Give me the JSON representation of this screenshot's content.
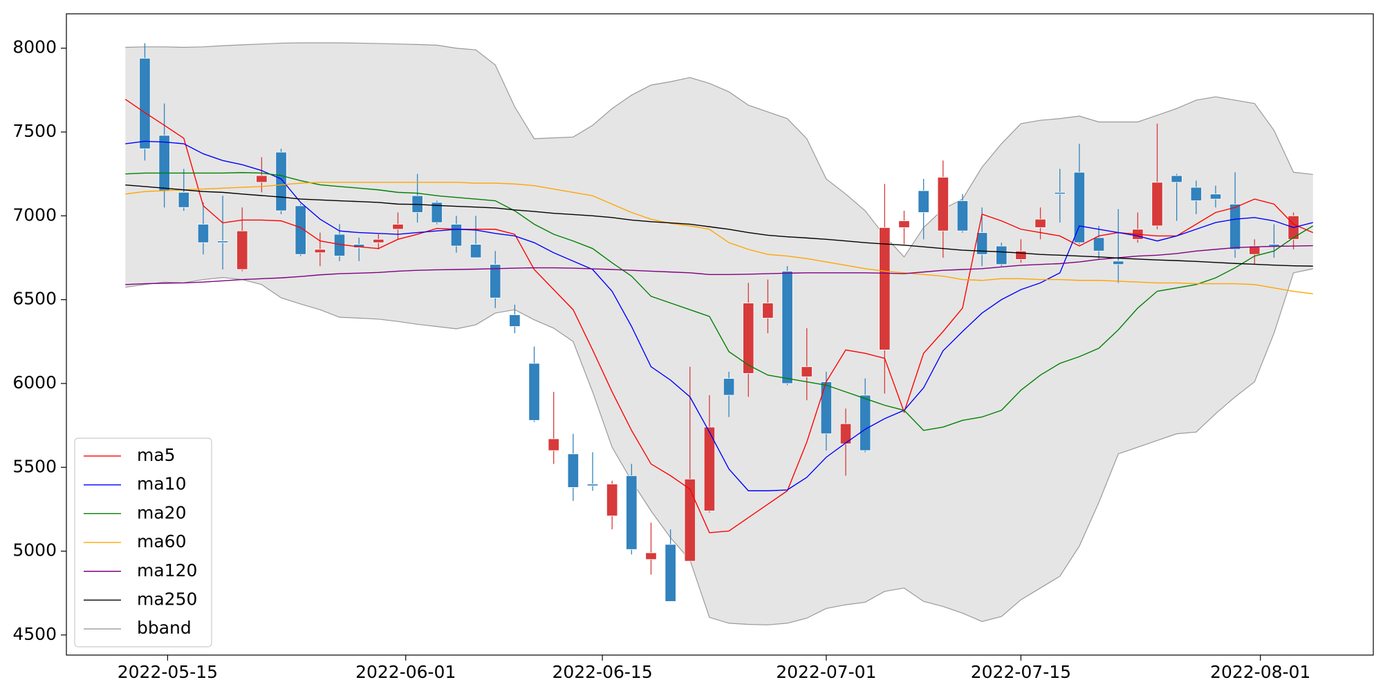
{
  "chart_data": {
    "type": "candlestick",
    "xlim": [
      -3.03,
      64.1
    ],
    "xticks": [
      {
        "value": 2.17,
        "label": "2022-05-15"
      },
      {
        "value": 14.4,
        "label": "2022-06-01"
      },
      {
        "value": 24.5,
        "label": "2022-06-15"
      },
      {
        "value": 36.0,
        "label": "2022-07-01"
      },
      {
        "value": 46.0,
        "label": "2022-07-15"
      },
      {
        "value": 58.3,
        "label": "2022-08-01"
      }
    ],
    "ylim": [
      4380,
      8205
    ],
    "yticks": [
      4500,
      5000,
      5500,
      6000,
      6500,
      7000,
      7500,
      8000
    ],
    "up_color": "#d73a3a",
    "down_color": "#3182bd",
    "legend": "lower left",
    "candles": {
      "open": [
        null,
        7940,
        7480,
        7140,
        6950,
        6850,
        6680,
        7200,
        7380,
        7060,
        6780,
        6890,
        6830,
        6840,
        6920,
        7120,
        7080,
        6950,
        6830,
        6710,
        6410,
        6120,
        5600,
        5580,
        5400,
        5210,
        5450,
        4950,
        5040,
        4940,
        5240,
        6030,
        6060,
        6390,
        6670,
        6040,
        6010,
        5640,
        5930,
        6200,
        6930,
        7150,
        6910,
        7090,
        6900,
        6820,
        6740,
        6930,
        7140,
        7260,
        6870,
        6730,
        6860,
        6940,
        7240,
        7170,
        7130,
        7070,
        6770,
        6830,
        6860,
        null
      ],
      "high": [
        null,
        8030,
        7670,
        7280,
        7080,
        7120,
        7050,
        7350,
        7400,
        7070,
        6900,
        6950,
        6870,
        6890,
        7020,
        7250,
        7090,
        7000,
        7000,
        6790,
        6470,
        6220,
        5950,
        5700,
        5590,
        5420,
        5520,
        5170,
        5130,
        6100,
        5930,
        6070,
        6600,
        6620,
        6700,
        6330,
        6070,
        5850,
        6030,
        7190,
        7030,
        7220,
        7330,
        7130,
        7050,
        6840,
        6860,
        7050,
        7280,
        7430,
        6940,
        7040,
        7020,
        7550,
        7250,
        7210,
        7180,
        7260,
        6860,
        6950,
        7020,
        null
      ],
      "low": [
        null,
        7330,
        7050,
        7030,
        6770,
        6680,
        6670,
        7140,
        7010,
        6760,
        6700,
        6730,
        6730,
        6800,
        6860,
        6960,
        6950,
        6780,
        6750,
        6450,
        6300,
        5770,
        5520,
        5300,
        5360,
        5130,
        4980,
        4860,
        4700,
        4940,
        5230,
        5800,
        5920,
        6300,
        5990,
        5900,
        5600,
        5450,
        5590,
        5940,
        6830,
        6860,
        6750,
        6900,
        6700,
        6700,
        6720,
        6860,
        6960,
        6830,
        6740,
        6600,
        6840,
        6920,
        6970,
        7010,
        7050,
        6750,
        6710,
        6750,
        6800,
        null
      ],
      "close": [
        null,
        7400,
        7150,
        7050,
        6840,
        6840,
        6910,
        7240,
        7030,
        6770,
        6800,
        6760,
        6810,
        6860,
        6950,
        7020,
        6960,
        6820,
        6750,
        6510,
        6340,
        5780,
        5670,
        5380,
        5390,
        5400,
        5010,
        4990,
        4700,
        5430,
        5740,
        5930,
        6480,
        6480,
        6000,
        6100,
        5700,
        5760,
        5600,
        6930,
        6970,
        7020,
        7230,
        6910,
        6770,
        6710,
        6790,
        6980,
        7130,
        6840,
        6790,
        6710,
        6920,
        7200,
        7200,
        7090,
        7100,
        6800,
        6820,
        6820,
        7000,
        null
      ]
    },
    "series": [
      {
        "name": "ma5",
        "color": "#ff0000",
        "values": [
          7695,
          7616,
          7540,
          7463,
          7060,
          6958,
          6975,
          6975,
          6970,
          6930,
          6850,
          6830,
          6815,
          6805,
          6860,
          6890,
          6925,
          6920,
          6920,
          6920,
          6890,
          6680,
          6560,
          6440,
          6200,
          5950,
          5720,
          5520,
          5450,
          5370,
          5110,
          5120,
          5200,
          5280,
          5360,
          5650,
          6010,
          6200,
          6180,
          6150,
          5830,
          6180,
          6310,
          6450,
          7010,
          6970,
          6920,
          6900,
          6880,
          6820,
          6880,
          6900,
          6890,
          6880,
          6880,
          6950,
          7020,
          7050,
          7100,
          7070,
          6950,
          6900
        ]
      },
      {
        "name": "ma10",
        "color": "#0000ff",
        "values": [
          7430,
          7445,
          7440,
          7430,
          7370,
          7330,
          7305,
          7270,
          7220,
          7080,
          6980,
          6910,
          6900,
          6895,
          6890,
          6900,
          6910,
          6920,
          6915,
          6895,
          6880,
          6840,
          6780,
          6730,
          6680,
          6550,
          6340,
          6100,
          6020,
          5920,
          5710,
          5490,
          5360,
          5360,
          5365,
          5440,
          5560,
          5645,
          5727,
          5790,
          5840,
          5974,
          6195,
          6310,
          6420,
          6500,
          6560,
          6600,
          6660,
          6940,
          6920,
          6900,
          6880,
          6850,
          6880,
          6920,
          6960,
          6980,
          6990,
          6970,
          6930,
          6960
        ]
      },
      {
        "name": "ma20",
        "color": "#008000",
        "values": [
          7250,
          7255,
          7255,
          7255,
          7255,
          7255,
          7258,
          7255,
          7240,
          7210,
          7185,
          7175,
          7165,
          7155,
          7140,
          7135,
          7120,
          7110,
          7100,
          7090,
          7030,
          6950,
          6890,
          6850,
          6805,
          6720,
          6640,
          6520,
          6480,
          6440,
          6400,
          6190,
          6110,
          6050,
          6030,
          6010,
          5990,
          5950,
          5910,
          5870,
          5840,
          5720,
          5740,
          5780,
          5800,
          5840,
          5960,
          6050,
          6120,
          6160,
          6210,
          6320,
          6450,
          6550,
          6570,
          6590,
          6630,
          6690,
          6760,
          6790,
          6870,
          6940
        ]
      },
      {
        "name": "ma60",
        "color": "#ffa500",
        "values": [
          7130,
          7145,
          7150,
          7155,
          7160,
          7165,
          7170,
          7175,
          7185,
          7195,
          7200,
          7200,
          7200,
          7200,
          7200,
          7200,
          7200,
          7200,
          7195,
          7195,
          7190,
          7180,
          7160,
          7140,
          7120,
          7070,
          7020,
          6980,
          6955,
          6940,
          6920,
          6840,
          6800,
          6770,
          6760,
          6745,
          6725,
          6705,
          6685,
          6670,
          6660,
          6650,
          6640,
          6620,
          6615,
          6625,
          6625,
          6620,
          6620,
          6615,
          6615,
          6610,
          6605,
          6600,
          6600,
          6595,
          6595,
          6595,
          6590,
          6570,
          6550,
          6535
        ]
      },
      {
        "name": "ma120",
        "color": "#800080",
        "values": [
          6590,
          6595,
          6598,
          6600,
          6605,
          6612,
          6620,
          6625,
          6630,
          6638,
          6648,
          6655,
          6658,
          6662,
          6670,
          6675,
          6678,
          6680,
          6682,
          6685,
          6688,
          6690,
          6690,
          6688,
          6684,
          6680,
          6675,
          6670,
          6665,
          6660,
          6650,
          6650,
          6652,
          6655,
          6658,
          6660,
          6660,
          6660,
          6660,
          6658,
          6655,
          6665,
          6675,
          6680,
          6685,
          6695,
          6705,
          6710,
          6715,
          6725,
          6740,
          6750,
          6760,
          6765,
          6775,
          6790,
          6800,
          6810,
          6815,
          6818,
          6820,
          6822
        ]
      },
      {
        "name": "ma250",
        "color": "#000000",
        "values": [
          7184,
          7175,
          7165,
          7155,
          7145,
          7140,
          7130,
          7121,
          7112,
          7100,
          7095,
          7090,
          7085,
          7080,
          7070,
          7068,
          7062,
          7057,
          7052,
          7047,
          7035,
          7026,
          7015,
          7008,
          7000,
          6990,
          6975,
          6965,
          6958,
          6950,
          6935,
          6920,
          6900,
          6884,
          6875,
          6868,
          6860,
          6850,
          6840,
          6832,
          6825,
          6815,
          6805,
          6795,
          6790,
          6785,
          6778,
          6770,
          6765,
          6760,
          6755,
          6748,
          6742,
          6737,
          6733,
          6728,
          6722,
          6716,
          6711,
          6706,
          6702,
          6700
        ]
      },
      {
        "name": "bband",
        "color": "#999999",
        "fill": "#e5e5e5",
        "upper": [
          8005,
          8008,
          8008,
          8005,
          8008,
          8015,
          8020,
          8025,
          8030,
          8032,
          8032,
          8032,
          8030,
          8028,
          8025,
          8022,
          8018,
          8000,
          7990,
          7900,
          7650,
          7460,
          7465,
          7470,
          7540,
          7640,
          7720,
          7780,
          7800,
          7825,
          7790,
          7740,
          7660,
          7620,
          7580,
          7460,
          7220,
          7130,
          7030,
          6880,
          6755,
          6930,
          7040,
          7100,
          7290,
          7430,
          7550,
          7570,
          7580,
          7595,
          7560,
          7560,
          7560,
          7600,
          7640,
          7690,
          7710,
          7690,
          7670,
          7510,
          7260,
          7247
        ],
        "lower": [
          6574,
          6590,
          6605,
          6600,
          6620,
          6632,
          6620,
          6590,
          6511,
          6474,
          6440,
          6395,
          6390,
          6384,
          6370,
          6353,
          6340,
          6326,
          6350,
          6420,
          6440,
          6380,
          6330,
          6250,
          5950,
          5620,
          5420,
          5240,
          5080,
          4947,
          4605,
          4570,
          4563,
          4560,
          4570,
          4600,
          4658,
          4680,
          4695,
          4760,
          4780,
          4700,
          4670,
          4630,
          4580,
          4610,
          4710,
          4780,
          4850,
          5030,
          5290,
          5580,
          5620,
          5660,
          5700,
          5710,
          5820,
          5920,
          6010,
          6300,
          6660,
          6684
        ]
      }
    ]
  }
}
